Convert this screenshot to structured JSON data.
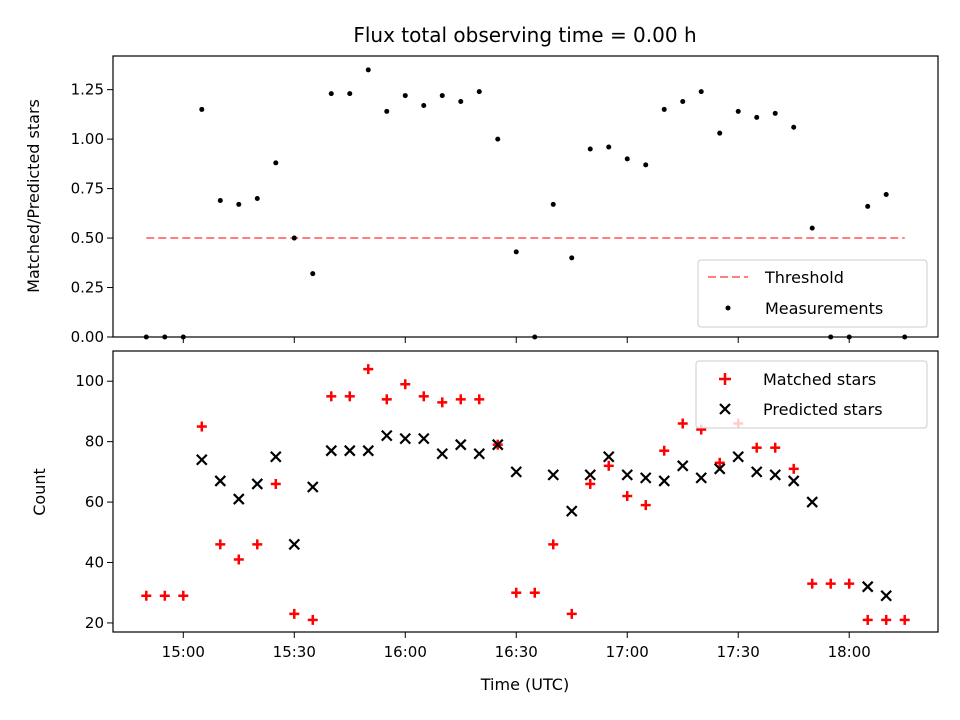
{
  "chart_data": [
    {
      "type": "scatter",
      "title": "Flux total observing time = 0.00 h",
      "ylabel": "Matched/Predicted stars",
      "ylim": [
        0.0,
        1.42
      ],
      "yticks": [
        "0.00",
        "0.25",
        "0.50",
        "0.75",
        "1.00",
        "1.25"
      ],
      "grid": false,
      "legend": "bottom-right",
      "colors": {
        "threshold": "#ff7f7f",
        "measurements": "#000000"
      },
      "series": [
        {
          "name": "Threshold",
          "style": "dashed-line",
          "x": [
            "14:50",
            "18:15"
          ],
          "y": [
            0.5,
            0.5
          ]
        },
        {
          "name": "Measurements",
          "style": "dot",
          "x": [
            "14:50",
            "14:55",
            "15:00",
            "15:05",
            "15:10",
            "15:15",
            "15:20",
            "15:25",
            "15:30",
            "15:35",
            "15:40",
            "15:45",
            "15:50",
            "15:55",
            "16:00",
            "16:05",
            "16:10",
            "16:15",
            "16:20",
            "16:25",
            "16:30",
            "16:35",
            "16:40",
            "16:45",
            "16:50",
            "16:55",
            "17:00",
            "17:05",
            "17:10",
            "17:15",
            "17:20",
            "17:25",
            "17:30",
            "17:35",
            "17:40",
            "17:45",
            "17:50",
            "17:55",
            "18:00",
            "18:05",
            "18:10",
            "18:15"
          ],
          "y": [
            0.0,
            0.0,
            0.0,
            1.15,
            0.69,
            0.67,
            0.7,
            0.88,
            0.5,
            0.32,
            1.23,
            1.23,
            1.35,
            1.14,
            1.22,
            1.17,
            1.22,
            1.19,
            1.24,
            1.0,
            0.43,
            0.0,
            0.67,
            0.4,
            0.95,
            0.96,
            0.9,
            0.87,
            1.15,
            1.19,
            1.24,
            1.03,
            1.14,
            1.11,
            1.13,
            1.06,
            0.55,
            0.0,
            0.0,
            0.66,
            0.72,
            0.0
          ]
        }
      ]
    },
    {
      "type": "scatter",
      "xlabel": "Time (UTC)",
      "ylabel": "Count",
      "xticks": [
        "15:00",
        "15:30",
        "16:00",
        "16:30",
        "17:00",
        "17:30",
        "18:00"
      ],
      "ylim": [
        17,
        110
      ],
      "yticks": [
        "20",
        "40",
        "60",
        "80",
        "100"
      ],
      "grid": false,
      "legend": "top-right",
      "colors": {
        "matched": "#ff0000",
        "predicted": "#000000"
      },
      "series": [
        {
          "name": "Matched stars",
          "marker": "plus",
          "x": [
            "14:50",
            "14:55",
            "15:00",
            "15:05",
            "15:10",
            "15:15",
            "15:20",
            "15:25",
            "15:30",
            "15:35",
            "15:40",
            "15:45",
            "15:50",
            "15:55",
            "16:00",
            "16:05",
            "16:10",
            "16:15",
            "16:20",
            "16:25",
            "16:30",
            "16:35",
            "16:40",
            "16:45",
            "16:50",
            "16:55",
            "17:00",
            "17:05",
            "17:10",
            "17:15",
            "17:20",
            "17:25",
            "17:30",
            "17:35",
            "17:40",
            "17:45",
            "17:50",
            "17:55",
            "18:00",
            "18:05",
            "18:10",
            "18:15"
          ],
          "y": [
            29,
            29,
            29,
            85,
            46,
            41,
            46,
            66,
            23,
            21,
            95,
            95,
            104,
            94,
            99,
            95,
            93,
            94,
            94,
            79,
            30,
            30,
            46,
            23,
            66,
            72,
            62,
            59,
            77,
            86,
            84,
            73,
            86,
            78,
            78,
            71,
            33,
            33,
            33,
            21,
            21,
            21
          ]
        },
        {
          "name": "Predicted stars",
          "marker": "x",
          "x": [
            "15:05",
            "15:10",
            "15:15",
            "15:20",
            "15:25",
            "15:30",
            "15:35",
            "15:40",
            "15:45",
            "15:50",
            "15:55",
            "16:00",
            "16:05",
            "16:10",
            "16:15",
            "16:20",
            "16:25",
            "16:30",
            "16:40",
            "16:45",
            "16:50",
            "16:55",
            "17:00",
            "17:05",
            "17:10",
            "17:15",
            "17:20",
            "17:25",
            "17:30",
            "17:35",
            "17:40",
            "17:45",
            "17:50",
            "18:05",
            "18:10"
          ],
          "y": [
            74,
            67,
            61,
            66,
            75,
            46,
            65,
            77,
            77,
            77,
            82,
            81,
            81,
            76,
            79,
            76,
            79,
            70,
            69,
            57,
            69,
            75,
            69,
            68,
            67,
            72,
            68,
            71,
            75,
            70,
            69,
            67,
            60,
            32,
            29
          ]
        }
      ]
    }
  ]
}
